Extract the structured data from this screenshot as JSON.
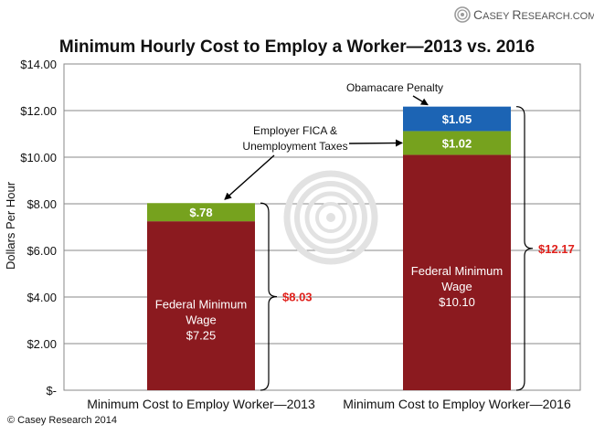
{
  "brand": {
    "name_prefix": "C",
    "name_small": "ASEY ",
    "name_prefix2": "R",
    "name_small2": "ESEARCH",
    "name_suffix": ".COM",
    "copyright": "© Casey Research 2014"
  },
  "chart_data": {
    "type": "bar",
    "stacked": true,
    "title": "Minimum Hourly Cost to Employ a Worker—2013 vs. 2016",
    "ylabel": "Dollars Per Hour",
    "xlabel": "",
    "ylim": [
      0,
      14
    ],
    "yticks": [
      0,
      2,
      4,
      6,
      8,
      10,
      12,
      14
    ],
    "ytick_labels": [
      "$-",
      "$2.00",
      "$4.00",
      "$6.00",
      "$8.00",
      "$10.00",
      "$12.00",
      "$14.00"
    ],
    "grid": true,
    "categories": [
      "Minimum Cost to Employ Worker—2013",
      "Minimum Cost to Employ Worker—2016"
    ],
    "series": [
      {
        "name": "Federal Minimum Wage",
        "values": [
          7.25,
          10.1
        ],
        "color": "#8b1a1f",
        "labels": [
          [
            "Federal Minimum",
            "Wage",
            "$7.25"
          ],
          [
            "Federal Minimum",
            "Wage",
            "$10.10"
          ]
        ]
      },
      {
        "name": "Employer FICA & Unemployment Taxes",
        "values": [
          0.78,
          1.02
        ],
        "color": "#76a21e",
        "labels": [
          [
            "$.78"
          ],
          [
            "$1.02"
          ]
        ]
      },
      {
        "name": "Obamacare Penalty",
        "values": [
          0,
          1.05
        ],
        "color": "#1c64b4",
        "labels": [
          [
            ""
          ],
          [
            "$1.05"
          ]
        ]
      }
    ],
    "totals": [
      "$8.03",
      "$12.17"
    ],
    "total_color": "#e0201b",
    "annotations": [
      {
        "lines": [
          "Obamacare Penalty"
        ],
        "target_category": 1,
        "target_series": 2
      },
      {
        "lines": [
          "Employer FICA &",
          "Unemployment Taxes"
        ],
        "target_categories": [
          0,
          1
        ],
        "target_series": 1
      }
    ]
  }
}
